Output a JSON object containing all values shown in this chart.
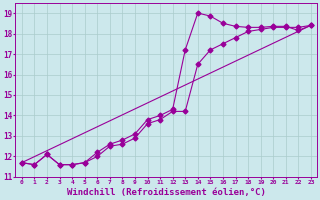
{
  "background_color": "#cce8ec",
  "grid_color": "#aacccc",
  "line_color": "#990099",
  "marker": "D",
  "marker_size": 2.5,
  "line_width": 0.8,
  "xlabel": "Windchill (Refroidissement éolien,°C)",
  "xlabel_fontsize": 6.5,
  "tick_fontsize": 5.5,
  "xlim": [
    -0.5,
    23.5
  ],
  "ylim": [
    11,
    19.5
  ],
  "yticks": [
    11,
    12,
    13,
    14,
    15,
    16,
    17,
    18,
    19
  ],
  "xticks": [
    0,
    1,
    2,
    3,
    4,
    5,
    6,
    7,
    8,
    9,
    10,
    11,
    12,
    13,
    14,
    15,
    16,
    17,
    18,
    19,
    20,
    21,
    22,
    23
  ],
  "line1_x": [
    0,
    1,
    2,
    3,
    4,
    5,
    6,
    7,
    8,
    9,
    10,
    11,
    12,
    13,
    14,
    15,
    16,
    17,
    18,
    19,
    20,
    21,
    22,
    23
  ],
  "line1_y": [
    11.7,
    11.6,
    12.1,
    11.6,
    11.6,
    11.7,
    12.2,
    12.6,
    12.8,
    13.1,
    13.8,
    14.0,
    14.3,
    17.2,
    19.0,
    18.85,
    18.5,
    18.35,
    18.3,
    18.3,
    18.35,
    18.35,
    18.15,
    18.4
  ],
  "line2_x": [
    0,
    1,
    2,
    3,
    4,
    5,
    6,
    7,
    8,
    9,
    10,
    11,
    12,
    13,
    14,
    15,
    16,
    17,
    18,
    19,
    20,
    21,
    22,
    23
  ],
  "line2_y": [
    11.7,
    11.6,
    12.1,
    11.6,
    11.6,
    11.7,
    12.0,
    12.5,
    12.6,
    12.9,
    13.6,
    13.8,
    14.2,
    14.2,
    16.5,
    17.2,
    17.5,
    17.8,
    18.1,
    18.2,
    18.3,
    18.3,
    18.3,
    18.4
  ],
  "line3_x": [
    0,
    23
  ],
  "line3_y": [
    11.7,
    18.4
  ]
}
